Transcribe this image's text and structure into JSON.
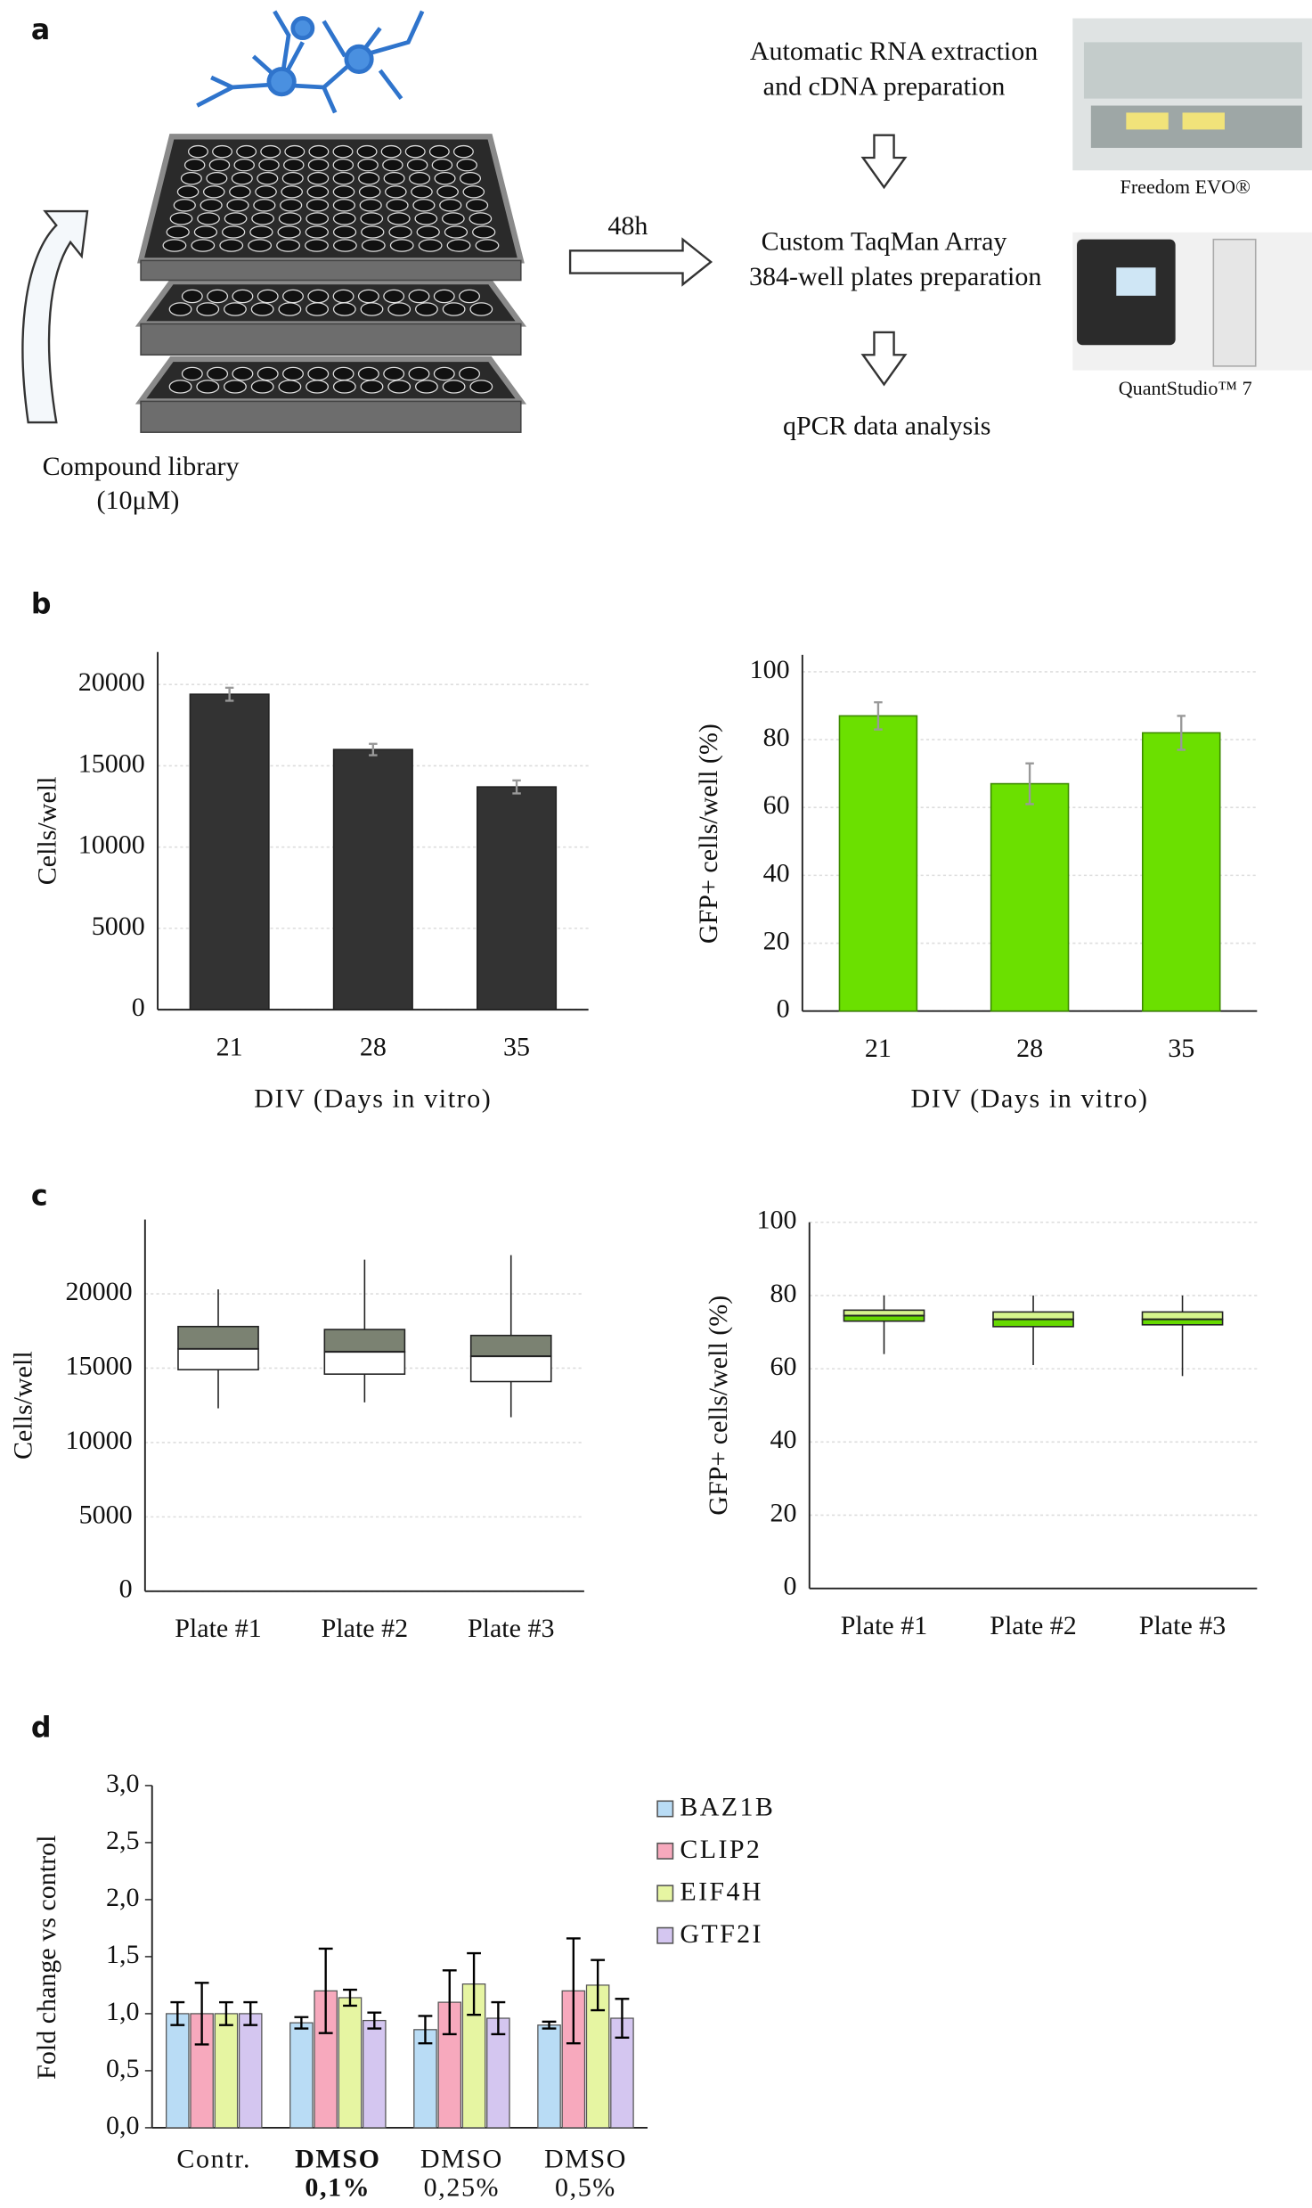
{
  "panel_labels": [
    "a",
    "b",
    "c",
    "d"
  ],
  "workflow": {
    "steps": [
      [
        "Automatic RNA extraction",
        "and cDNA preparation"
      ],
      [
        "Custom TaqMan Array",
        "384-well plates preparation"
      ],
      [
        "qPCR data analysis"
      ]
    ],
    "incubation": "48h",
    "library": [
      "Compound library",
      "(10μM)"
    ],
    "instruments": [
      "Freedom EVO®",
      "QuantStudio™ 7"
    ]
  },
  "chart_data": [
    {
      "type": "bar",
      "xlabel": "DIV (Days in vitro)",
      "ylabel": "Cells/well",
      "categories": [
        "21",
        "28",
        "35"
      ],
      "values": [
        19400,
        16000,
        13700
      ],
      "errors": [
        400,
        350,
        400
      ],
      "color": "#333333",
      "edge_color": "#222222",
      "error_color": "#999999",
      "ylim": [
        0,
        22000
      ],
      "yticks": [
        0,
        5000,
        10000,
        15000,
        20000
      ],
      "grid": true
    },
    {
      "type": "bar",
      "xlabel": "DIV (Days in vitro)",
      "ylabel": "GFP+ cells/well (%)",
      "categories": [
        "21",
        "28",
        "35"
      ],
      "values": [
        87,
        67,
        82
      ],
      "errors": [
        4,
        6,
        5
      ],
      "color": "#6be000",
      "edge_color": "#3c8a00",
      "error_color": "#999999",
      "ylim": [
        0,
        105
      ],
      "yticks": [
        0,
        20,
        40,
        60,
        80,
        100
      ],
      "grid": true
    },
    {
      "type": "box",
      "ylabel": "Cells/well",
      "categories": [
        "Plate #1",
        "Plate #2",
        "Plate #3"
      ],
      "min": [
        12300,
        12700,
        11700
      ],
      "q1": [
        14900,
        14600,
        14100
      ],
      "median": [
        16300,
        16100,
        15800
      ],
      "q3": [
        17800,
        17600,
        17200
      ],
      "max": [
        20300,
        22300,
        22600
      ],
      "upper_color": "#7b8272",
      "lower_color": "#ffffff",
      "ylim": [
        0,
        25000
      ],
      "yticks": [
        0,
        5000,
        10000,
        15000,
        20000
      ],
      "grid": true
    },
    {
      "type": "box",
      "ylabel": "GFP+ cells/well (%)",
      "categories": [
        "Plate #1",
        "Plate #2",
        "Plate #3"
      ],
      "min": [
        64,
        61,
        58
      ],
      "q1": [
        73,
        71.5,
        72
      ],
      "median": [
        74.5,
        73.5,
        73.5
      ],
      "q3": [
        76,
        75.5,
        75.5
      ],
      "max": [
        80,
        80,
        80
      ],
      "upper_color": "#d6f58c",
      "lower_color": "#66d900",
      "ylim": [
        0,
        100
      ],
      "yticks": [
        0,
        20,
        40,
        60,
        80,
        100
      ],
      "grid": true
    },
    {
      "type": "bar",
      "ylabel": "Fold change vs control",
      "categories": [
        [
          "Contr."
        ],
        [
          "DMSO",
          "0,1%"
        ],
        [
          "DMSO",
          "0,25%"
        ],
        [
          "DMSO",
          "0,5%"
        ]
      ],
      "bold_categories": [
        1
      ],
      "series": [
        {
          "name": "BAZ1B",
          "color": "#b9dcf5",
          "values": [
            1.0,
            0.92,
            0.86,
            0.9
          ],
          "errors": [
            0.1,
            0.05,
            0.12,
            0.03
          ]
        },
        {
          "name": "CLIP2",
          "color": "#f7a9bd",
          "values": [
            1.0,
            1.2,
            1.1,
            1.2
          ],
          "errors": [
            0.27,
            0.37,
            0.28,
            0.46
          ]
        },
        {
          "name": "EIF4H",
          "color": "#e6f5a2",
          "values": [
            1.0,
            1.14,
            1.26,
            1.25
          ],
          "errors": [
            0.1,
            0.07,
            0.27,
            0.22
          ]
        },
        {
          "name": "GTF2I",
          "color": "#d4c6f0",
          "values": [
            1.0,
            0.94,
            0.96,
            0.96
          ],
          "errors": [
            0.1,
            0.07,
            0.14,
            0.17
          ]
        }
      ],
      "edge_color": "#555555",
      "error_color": "#000000",
      "ylim": [
        0,
        3
      ],
      "yticks": [
        {
          "value": 0,
          "label": "0,0"
        },
        {
          "value": 0.5,
          "label": "0,5"
        },
        {
          "value": 1,
          "label": "1,0"
        },
        {
          "value": 1.5,
          "label": "1,5"
        },
        {
          "value": 2,
          "label": "2,0"
        },
        {
          "value": 2.5,
          "label": "2,5"
        },
        {
          "value": 3,
          "label": "3,0"
        }
      ],
      "grid": false,
      "legend": "right"
    }
  ]
}
